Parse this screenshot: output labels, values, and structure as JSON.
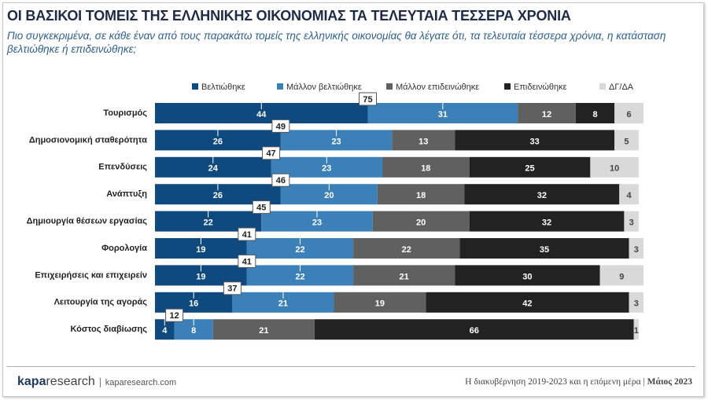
{
  "chart_data": {
    "type": "stacked-bar-horizontal",
    "title": "ΟΙ ΒΑΣΙΚΟΙ ΤΟΜΕΙΣ ΤΗΣ ΕΛΛΗΝΙΚΗΣ ΟΙΚΟΝΟΜΙΑΣ ΤΑ ΤΕΛΕΥΤΑΙΑ ΤΕΣΣΕΡΑ ΧΡΟΝΙΑ",
    "subtitle": "Πιο συγκεκριμένα, σε κάθε έναν από τους παρακάτω τομείς της ελληνικής οικονομίας θα λέγατε ότι, τα τελευταία τέσσερα χρόνια, η κατάσταση βελτιώθηκε ή επιδεινώθηκε;",
    "categories": [
      "Τουρισμός",
      "Δημοσιονομική σταθερότητα",
      "Επενδύσεις",
      "Ανάπτυξη",
      "Δημιουργία θέσεων εργασίας",
      "Φορολογία",
      "Επιχειρήσεις και επιχειρείν",
      "Λειτουργία της αγοράς",
      "Κόστος διαβίωσης"
    ],
    "series": [
      {
        "name": "Βελτιώθηκε",
        "color": "#0e4a7f",
        "values": [
          44,
          26,
          24,
          26,
          22,
          19,
          19,
          16,
          4
        ]
      },
      {
        "name": "Μάλλον βελτιώθηκε",
        "color": "#3b80b8",
        "values": [
          31,
          23,
          23,
          20,
          23,
          22,
          22,
          21,
          8
        ]
      },
      {
        "name": "Μάλλον επιδεινώθηκε",
        "color": "#606060",
        "values": [
          12,
          13,
          18,
          18,
          20,
          22,
          21,
          19,
          21
        ]
      },
      {
        "name": "Επιδεινώθηκε",
        "color": "#222222",
        "values": [
          8,
          33,
          25,
          32,
          32,
          35,
          30,
          42,
          66
        ]
      },
      {
        "name": "ΔΓ/ΔΑ",
        "color": "#d9d9d9",
        "values": [
          6,
          5,
          10,
          4,
          3,
          3,
          9,
          3,
          1
        ]
      }
    ],
    "improved_totals": [
      75,
      49,
      47,
      46,
      45,
      41,
      41,
      37,
      12
    ]
  },
  "footer": {
    "brand_main": "kapa",
    "brand_rest": "research",
    "url": "kaparesearch.com",
    "source": "Η διακυβέρνηση 2019-2023 και η επόμενη μέρα",
    "date": "Μάιος 2023"
  }
}
